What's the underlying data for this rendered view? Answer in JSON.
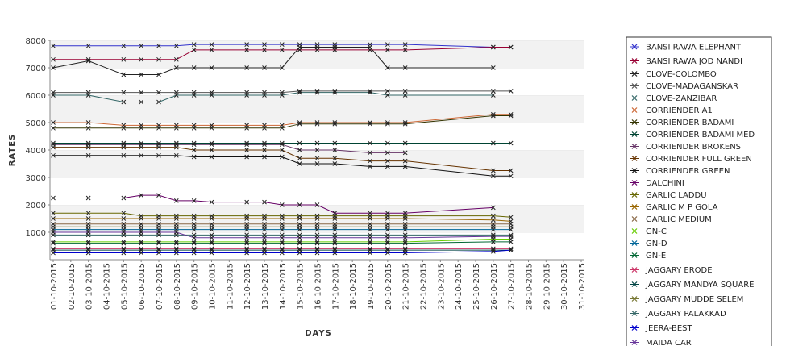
{
  "chart_data": {
    "type": "line",
    "xlabel": "DAYS",
    "ylabel": "RATES",
    "ylim": [
      0,
      8000
    ],
    "yticks": [
      1000,
      2000,
      3000,
      4000,
      5000,
      6000,
      7000,
      8000
    ],
    "grid": "alternating horizontal bands",
    "legend_position": "right",
    "categories": [
      "01-10-2015",
      "02-10-2015",
      "03-10-2015",
      "04-10-2015",
      "05-10-2015",
      "06-10-2015",
      "07-10-2015",
      "08-10-2015",
      "09-10-2015",
      "10-10-2015",
      "11-10-2015",
      "12-10-2015",
      "13-10-2015",
      "14-10-2015",
      "15-10-2015",
      "16-10-2015",
      "17-10-2015",
      "18-10-2015",
      "19-10-2015",
      "20-10-2015",
      "21-10-2015",
      "22-10-2015",
      "23-10-2015",
      "24-10-2015",
      "25-10-2015",
      "26-10-2015",
      "27-10-2015",
      "28-10-2015",
      "29-10-2015",
      "30-10-2015",
      "31-10-2015"
    ],
    "series": [
      {
        "name": "BANSI RAWA ELEPHANT",
        "color": "#3333cc",
        "values": [
          7800,
          null,
          7800,
          null,
          7800,
          7800,
          7800,
          7800,
          7850,
          7850,
          null,
          7850,
          7850,
          7850,
          7850,
          7850,
          7850,
          null,
          7850,
          7850,
          7850,
          null,
          null,
          null,
          null,
          7750,
          7750,
          null,
          null,
          null,
          null
        ]
      },
      {
        "name": "BANSI RAWA JOD NANDI",
        "color": "#990033",
        "values": [
          7300,
          null,
          7300,
          null,
          7300,
          7300,
          7300,
          7300,
          7650,
          7650,
          null,
          7650,
          7650,
          7650,
          7650,
          7650,
          7650,
          null,
          7650,
          7650,
          7650,
          null,
          null,
          null,
          null,
          7750,
          7750,
          null,
          null,
          null,
          null
        ]
      },
      {
        "name": "CLOVE-COLOMBO",
        "color": "#222222",
        "values": [
          7000,
          null,
          7250,
          null,
          6750,
          6750,
          6750,
          7000,
          7000,
          7000,
          null,
          7000,
          7000,
          7000,
          7750,
          7750,
          7750,
          null,
          7750,
          7000,
          7000,
          null,
          null,
          null,
          null,
          7000,
          null,
          null,
          null,
          null,
          null
        ]
      },
      {
        "name": "CLOVE-MADAGANSKAR",
        "color": "#555555",
        "values": [
          6100,
          null,
          6100,
          null,
          6100,
          6100,
          6100,
          6100,
          6100,
          6100,
          null,
          6100,
          6100,
          6100,
          6150,
          6150,
          6150,
          null,
          6150,
          6150,
          6150,
          null,
          null,
          null,
          null,
          6150,
          6150,
          null,
          null,
          null,
          null
        ]
      },
      {
        "name": "CLOVE-ZANZIBAR",
        "color": "#336666",
        "values": [
          6000,
          null,
          6000,
          null,
          5750,
          5750,
          5750,
          6000,
          6000,
          6000,
          null,
          6000,
          6000,
          6000,
          6100,
          6100,
          6100,
          null,
          6100,
          6000,
          6000,
          null,
          null,
          null,
          null,
          6000,
          null,
          null,
          null,
          null,
          null
        ]
      },
      {
        "name": "CORRIENDER A1",
        "color": "#cc6633",
        "values": [
          5000,
          null,
          5000,
          null,
          4900,
          4900,
          4900,
          4900,
          4900,
          4900,
          null,
          4900,
          4900,
          4900,
          5000,
          5000,
          5000,
          null,
          5000,
          5000,
          5000,
          null,
          null,
          null,
          null,
          5300,
          5300,
          null,
          null,
          null,
          null
        ]
      },
      {
        "name": "CORRIENDER BADAMI",
        "color": "#333300",
        "values": [
          4800,
          null,
          4800,
          null,
          4800,
          4800,
          4800,
          4800,
          4800,
          4800,
          null,
          4800,
          4800,
          4800,
          4950,
          4950,
          4950,
          null,
          4950,
          4950,
          4950,
          null,
          null,
          null,
          null,
          5250,
          5250,
          null,
          null,
          null,
          null
        ]
      },
      {
        "name": "CORRIENDER BADAMI MED",
        "color": "#004433",
        "values": [
          4250,
          null,
          4250,
          null,
          4250,
          4250,
          4250,
          4250,
          4250,
          4250,
          null,
          4250,
          4250,
          4250,
          4250,
          4250,
          4250,
          null,
          4250,
          4250,
          4250,
          null,
          null,
          null,
          null,
          4250,
          4250,
          null,
          null,
          null,
          null
        ]
      },
      {
        "name": "CORRIENDER BROKENS",
        "color": "#663366",
        "values": [
          4200,
          null,
          4200,
          null,
          4200,
          4200,
          4200,
          4200,
          4200,
          4200,
          null,
          4200,
          4200,
          4200,
          4000,
          4000,
          4000,
          null,
          3900,
          3900,
          3900,
          null,
          null,
          null,
          null,
          null,
          null,
          null,
          null,
          null,
          null
        ]
      },
      {
        "name": "CORRIENDER FULL GREEN",
        "color": "#663300",
        "values": [
          4100,
          null,
          4100,
          null,
          4100,
          4100,
          4100,
          4100,
          4000,
          4000,
          null,
          4000,
          4000,
          4000,
          3700,
          3700,
          3700,
          null,
          3600,
          3600,
          3600,
          null,
          null,
          null,
          null,
          3250,
          3250,
          null,
          null,
          null,
          null
        ]
      },
      {
        "name": "CORRIENDER GREEN",
        "color": "#111111",
        "values": [
          3800,
          null,
          3800,
          null,
          3800,
          3800,
          3800,
          3800,
          3750,
          3750,
          null,
          3750,
          3750,
          3750,
          3500,
          3500,
          3500,
          null,
          3400,
          3400,
          3400,
          null,
          null,
          null,
          null,
          3050,
          3050,
          null,
          null,
          null,
          null
        ]
      },
      {
        "name": "DALCHINI",
        "color": "#660066",
        "values": [
          2250,
          null,
          2250,
          null,
          2250,
          2350,
          2350,
          2150,
          2150,
          2100,
          null,
          2100,
          2100,
          2000,
          2000,
          2000,
          1700,
          null,
          1700,
          1700,
          1700,
          null,
          null,
          null,
          null,
          1900,
          null,
          null,
          null,
          null,
          null
        ]
      },
      {
        "name": "GARLIC LADDU",
        "color": "#666600",
        "values": [
          1700,
          null,
          1700,
          null,
          1700,
          1600,
          1600,
          1600,
          1600,
          1600,
          null,
          1600,
          1600,
          1600,
          1600,
          1600,
          1600,
          null,
          1600,
          1600,
          1600,
          null,
          null,
          null,
          null,
          1600,
          1550,
          null,
          null,
          null,
          null
        ]
      },
      {
        "name": "GARLIC M P GOLA",
        "color": "#996600",
        "values": [
          1500,
          null,
          1500,
          null,
          1500,
          1500,
          1500,
          1500,
          1500,
          1500,
          null,
          1500,
          1500,
          1500,
          1500,
          1500,
          1500,
          null,
          1500,
          1500,
          1500,
          null,
          null,
          null,
          null,
          1450,
          1400,
          null,
          null,
          null,
          null
        ]
      },
      {
        "name": "GARLIC MEDIUM",
        "color": "#886644",
        "values": [
          1300,
          null,
          1300,
          null,
          1300,
          1300,
          1300,
          1300,
          1300,
          1300,
          null,
          1300,
          1300,
          1300,
          1300,
          1300,
          1300,
          null,
          1300,
          1300,
          1300,
          null,
          null,
          null,
          null,
          1300,
          1300,
          null,
          null,
          null,
          null
        ]
      },
      {
        "name": "GN-C",
        "color": "#66cc00",
        "values": [
          650,
          null,
          650,
          null,
          650,
          650,
          650,
          650,
          650,
          650,
          null,
          650,
          650,
          650,
          650,
          650,
          650,
          null,
          650,
          650,
          650,
          null,
          null,
          null,
          null,
          750,
          750,
          null,
          null,
          null,
          null
        ]
      },
      {
        "name": "GN-D",
        "color": "#006699",
        "values": [
          1100,
          null,
          1100,
          null,
          1100,
          1100,
          1100,
          1100,
          1100,
          1100,
          null,
          1100,
          1100,
          1100,
          1100,
          1100,
          1100,
          null,
          1100,
          1100,
          1100,
          null,
          null,
          null,
          null,
          1100,
          1100,
          null,
          null,
          null,
          null
        ]
      },
      {
        "name": "GN-E",
        "color": "#006633",
        "values": [
          600,
          null,
          600,
          null,
          600,
          600,
          600,
          600,
          600,
          600,
          null,
          600,
          600,
          600,
          600,
          600,
          600,
          null,
          600,
          600,
          600,
          null,
          null,
          null,
          null,
          650,
          650,
          null,
          null,
          null,
          null
        ]
      },
      {
        "name": "JAGGARY ERODE",
        "color": "#cc3366",
        "values": [
          400,
          null,
          400,
          null,
          400,
          400,
          400,
          400,
          400,
          400,
          null,
          400,
          400,
          400,
          400,
          400,
          400,
          null,
          400,
          400,
          400,
          null,
          null,
          null,
          null,
          400,
          400,
          null,
          null,
          null,
          null
        ]
      },
      {
        "name": "JAGGARY MANDYA SQUARE",
        "color": "#004444",
        "values": [
          350,
          null,
          350,
          null,
          350,
          350,
          350,
          350,
          350,
          350,
          null,
          350,
          350,
          350,
          350,
          350,
          350,
          null,
          350,
          350,
          350,
          null,
          null,
          null,
          null,
          350,
          350,
          null,
          null,
          null,
          null
        ]
      },
      {
        "name": "JAGGARY MUDDE SELEM",
        "color": "#777733",
        "values": [
          1200,
          null,
          1200,
          null,
          1200,
          1200,
          1200,
          1200,
          1200,
          1200,
          null,
          1200,
          1200,
          1200,
          1200,
          1200,
          1200,
          null,
          1200,
          1200,
          1200,
          null,
          null,
          null,
          null,
          1200,
          1200,
          null,
          null,
          null,
          null
        ]
      },
      {
        "name": "JAGGARY PALAKKAD",
        "color": "#336666",
        "values": [
          900,
          null,
          900,
          null,
          900,
          900,
          900,
          900,
          900,
          900,
          null,
          900,
          900,
          900,
          900,
          900,
          900,
          null,
          900,
          900,
          900,
          null,
          null,
          null,
          null,
          900,
          900,
          null,
          null,
          null,
          null
        ]
      },
      {
        "name": "JEERA-BEST",
        "color": "#0000cc",
        "values": [
          250,
          null,
          250,
          null,
          250,
          250,
          250,
          250,
          250,
          250,
          null,
          250,
          250,
          250,
          250,
          250,
          250,
          null,
          250,
          250,
          250,
          null,
          null,
          null,
          null,
          300,
          350,
          null,
          null,
          null,
          null
        ]
      },
      {
        "name": "MAIDA CAR",
        "color": "#663399",
        "values": [
          1000,
          null,
          1000,
          null,
          1000,
          1000,
          1000,
          1000,
          800,
          800,
          null,
          800,
          800,
          800,
          800,
          800,
          800,
          null,
          800,
          800,
          800,
          null,
          null,
          null,
          null,
          850,
          850,
          null,
          null,
          null,
          null
        ]
      }
    ]
  }
}
